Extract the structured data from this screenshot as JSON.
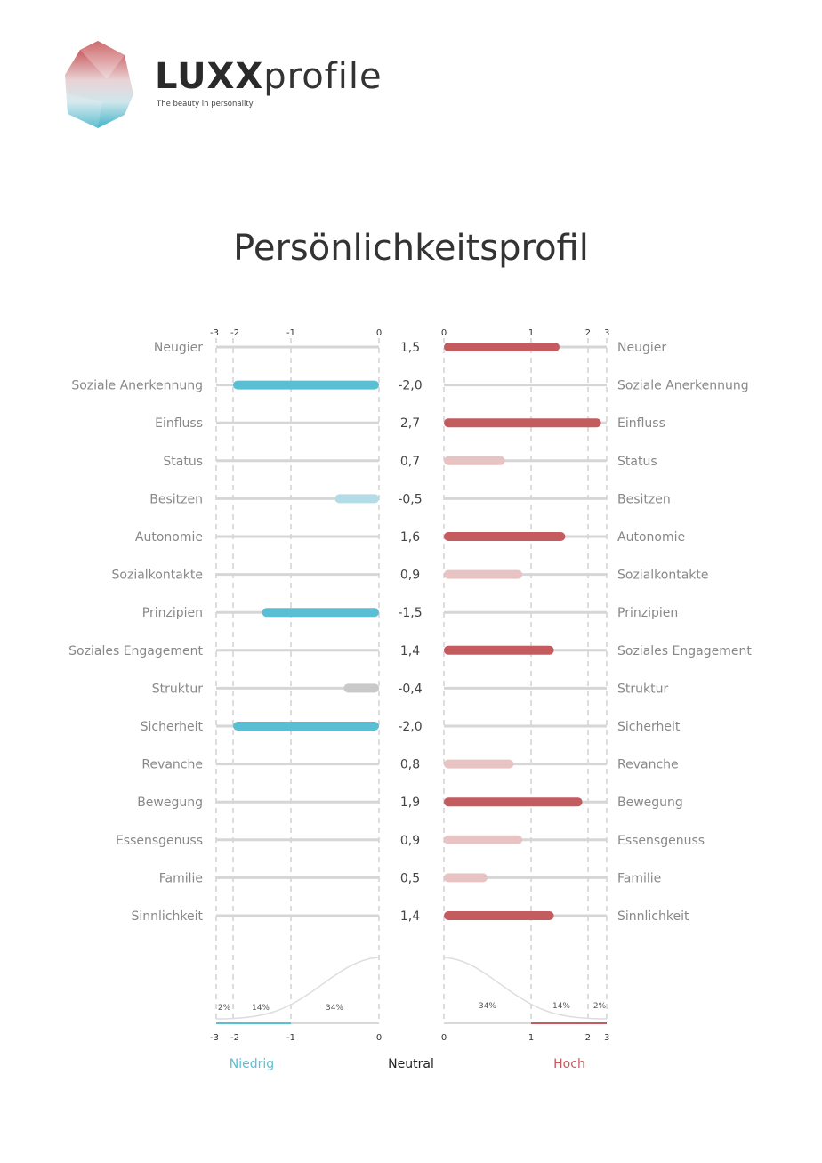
{
  "brand": {
    "name_bold": "LUXX",
    "name_light": "profile",
    "tagline": "The beauty in personality"
  },
  "title": "Persönlichkeitsprofil",
  "colors": {
    "strong_high": "#c45b5f",
    "weak_high": "#e8c3c4",
    "strong_low": "#5bbfd3",
    "weak_low": "#b3dde6",
    "neutral": "#c9c9c9",
    "track": "#d6d6d6"
  },
  "chart_data": {
    "type": "bar",
    "title": "Persönlichkeitsprofil",
    "left_axis": {
      "ticks": [
        "-3",
        "-2",
        "-1",
        "0"
      ],
      "range": [
        -3,
        0
      ]
    },
    "right_axis": {
      "ticks": [
        "0",
        "1",
        "2",
        "3"
      ],
      "range": [
        0,
        3
      ]
    },
    "categories": [
      "Neugier",
      "Soziale Anerkennung",
      "Einfluss",
      "Status",
      "Besitzen",
      "Autonomie",
      "Sozialkontakte",
      "Prinzipien",
      "Soziales Engagement",
      "Struktur",
      "Sicherheit",
      "Revanche",
      "Bewegung",
      "Essensgenuss",
      "Familie",
      "Sinnlichkeit"
    ],
    "values": [
      1.5,
      -2.0,
      2.7,
      0.7,
      -0.5,
      1.6,
      0.9,
      -1.5,
      1.4,
      -0.4,
      -2.0,
      0.8,
      1.9,
      0.9,
      0.5,
      1.4
    ],
    "value_labels": [
      "1,5",
      "-2,0",
      "2,7",
      "0,7",
      "-0,5",
      "1,6",
      "0,9",
      "-1,5",
      "1,4",
      "-0,4",
      "-2,0",
      "0,8",
      "1,9",
      "0,9",
      "0,5",
      "1,4"
    ],
    "bar_styles": [
      "strong_high",
      "strong_low",
      "strong_high",
      "weak_high",
      "weak_low",
      "strong_high",
      "weak_high",
      "strong_low",
      "strong_high",
      "neutral",
      "strong_low",
      "weak_high",
      "strong_high",
      "weak_high",
      "weak_high",
      "strong_high"
    ],
    "distribution": {
      "left_percent_labels": [
        "2%",
        "14%",
        "34%"
      ],
      "right_percent_labels": [
        "34%",
        "14%",
        "2%"
      ]
    },
    "legend": {
      "low": "Niedrig",
      "neutral": "Neutral",
      "high": "Hoch"
    }
  }
}
